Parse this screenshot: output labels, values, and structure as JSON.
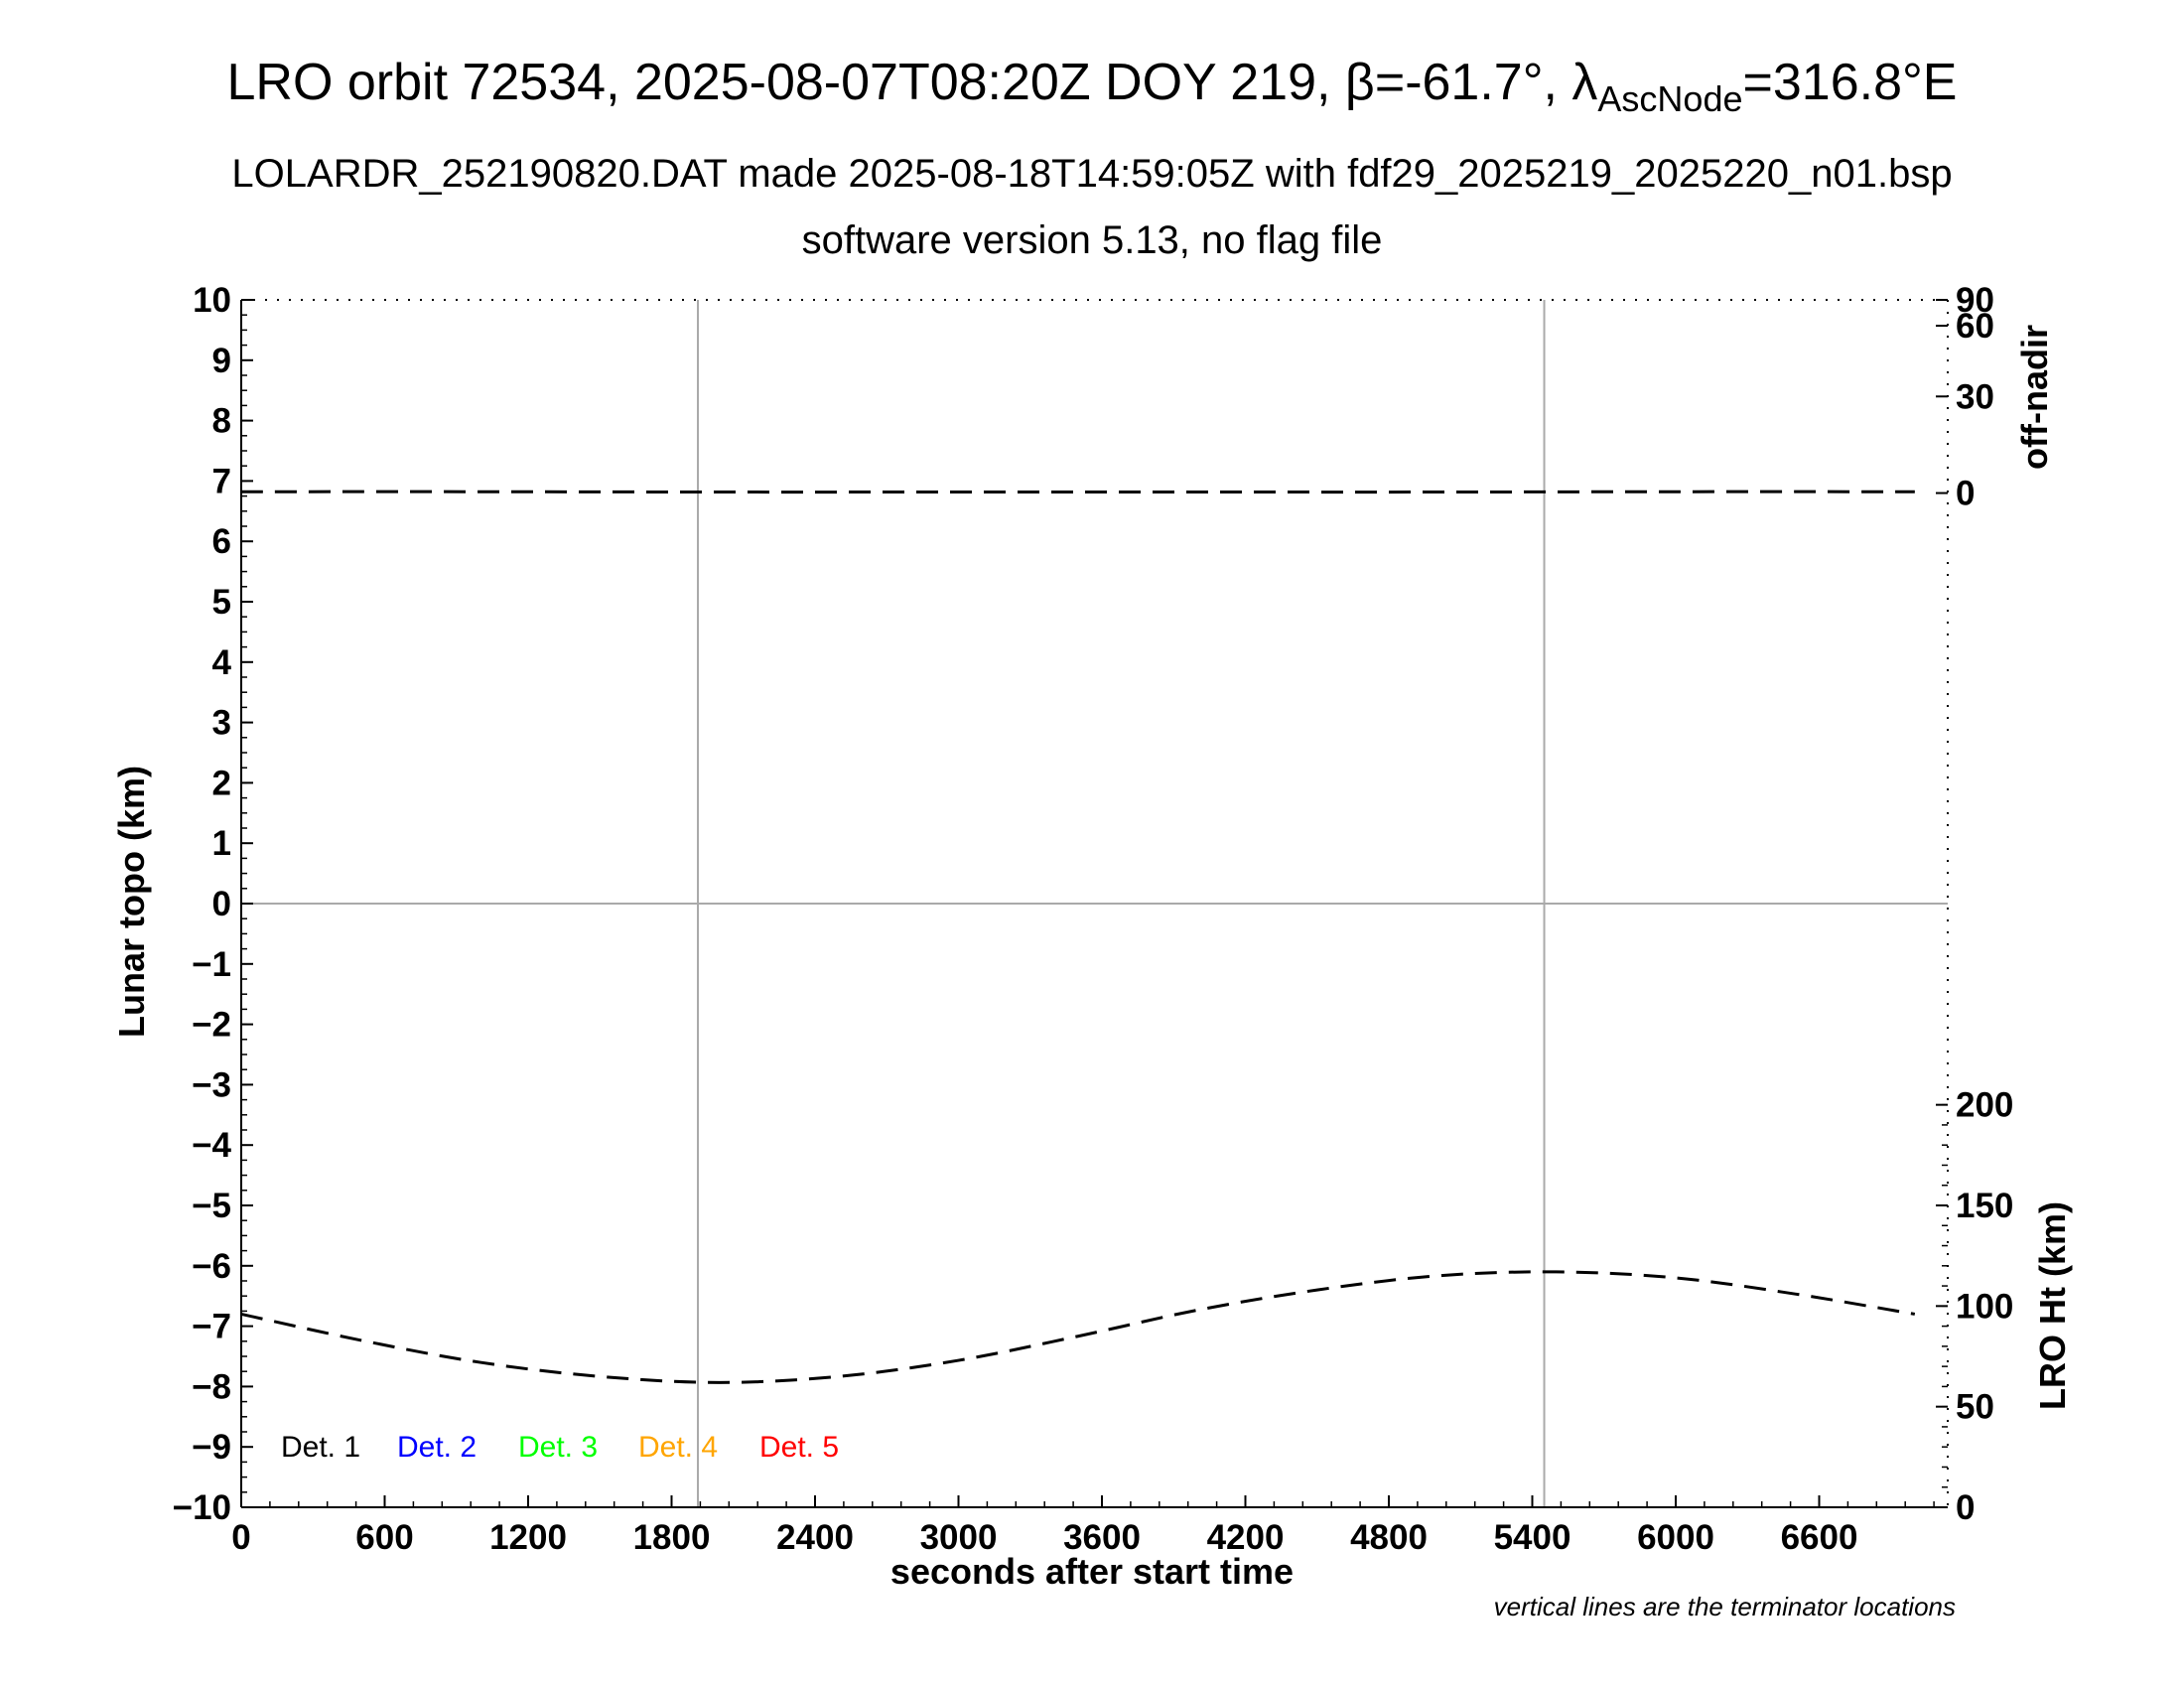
{
  "chart_data": {
    "type": "line",
    "title": {
      "main": "LRO orbit 72534, 2025-08-07T08:20Z DOY 219, ",
      "beta_symbol": "β",
      "beta_text": "=-61.7°, ",
      "lambda_symbol": "λ",
      "lambda_sub": "AscNode",
      "lambda_text": "=316.8°E"
    },
    "subtitle1": "LOLARDR_252190820.DAT made 2025-08-18T14:59:05Z with fdf29_2025219_2025220_n01.bsp",
    "subtitle2": "software version 5.13, no flag file",
    "xlabel": "seconds after start time",
    "ylabel_left": "Lunar topo (km)",
    "ylabel_right_top": "off-nadir",
    "ylabel_right_bottom": "LRO Ht (km)",
    "footnote": "vertical lines are the terminator locations",
    "xlim": [
      0,
      7140
    ],
    "ylim": [
      -10,
      10
    ],
    "x_ticks": [
      "0",
      "600",
      "1200",
      "1800",
      "2400",
      "3000",
      "3600",
      "4200",
      "4800",
      "5400",
      "6000",
      "6600"
    ],
    "y_ticks": [
      "−10",
      "−9",
      "−8",
      "−7",
      "−6",
      "−5",
      "−4",
      "−3",
      "−2",
      "−1",
      "0",
      "1",
      "2",
      "3",
      "4",
      "5",
      "6",
      "7",
      "8",
      "9",
      "10"
    ],
    "offnadir_ticks": [
      "0",
      "30",
      "60",
      "90"
    ],
    "height_ticks": [
      "0",
      "50",
      "100",
      "150",
      "200"
    ],
    "height_range_km": [
      0,
      300
    ],
    "terminator_lines_s": [
      1910,
      5450
    ],
    "legend": [
      {
        "label": "Det. 1",
        "color": "#000000"
      },
      {
        "label": "Det. 2",
        "color": "#0000ff"
      },
      {
        "label": "Det. 3",
        "color": "#00ff00"
      },
      {
        "label": "Det. 4",
        "color": "#ffa500"
      },
      {
        "label": "Det. 5",
        "color": "#ff0000"
      }
    ],
    "series": [
      {
        "role": "off-nadir angle (deg)",
        "style": "dashed",
        "x": [
          0,
          1000,
          2000,
          3000,
          4000,
          5000,
          6000,
          7000
        ],
        "values": [
          0.4,
          0.4,
          0.3,
          0.3,
          0.3,
          0.3,
          0.4,
          0.4
        ]
      },
      {
        "role": "LRO height (km)",
        "style": "dashed",
        "x": [
          0,
          500,
          1000,
          1500,
          2000,
          2500,
          3000,
          3500,
          4000,
          4500,
          5000,
          5500,
          6000,
          6500,
          7000
        ],
        "values": [
          96,
          83,
          72,
          65,
          62,
          65,
          73,
          85,
          98,
          108,
          115,
          117,
          114,
          106,
          96
        ]
      }
    ]
  }
}
